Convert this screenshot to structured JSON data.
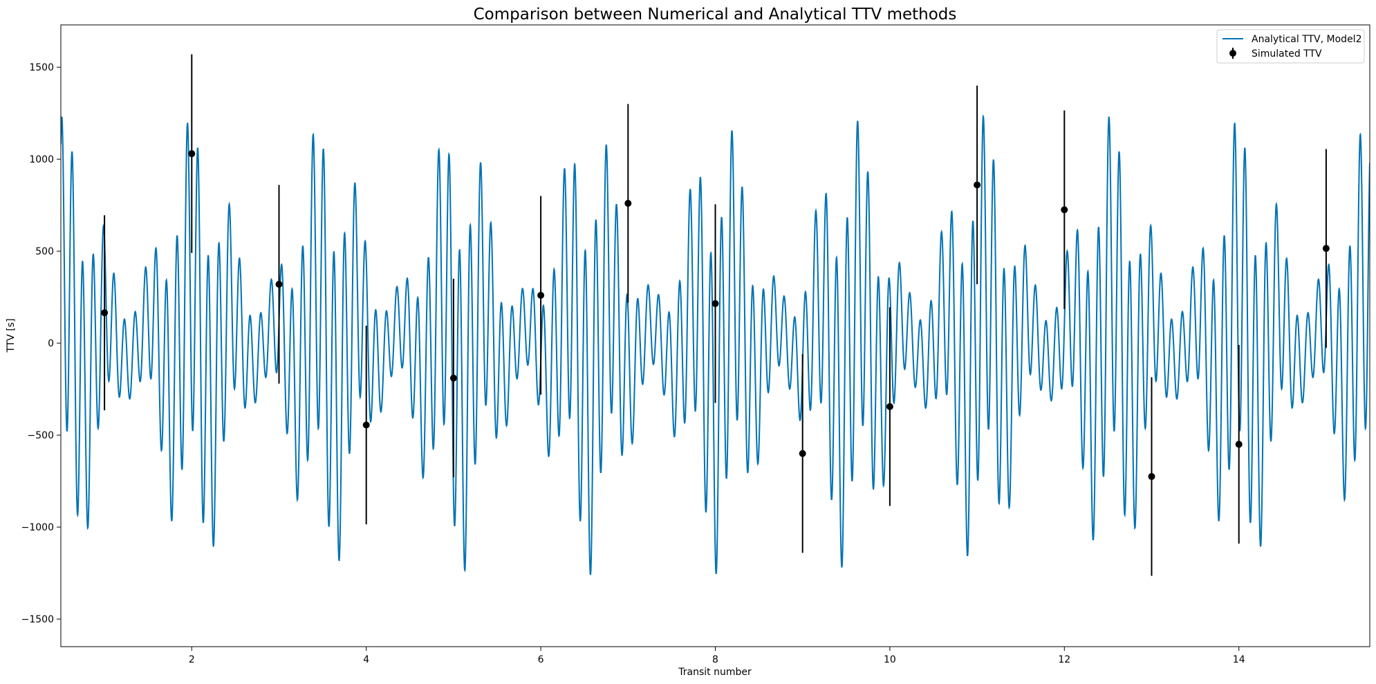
{
  "chart_data": {
    "type": "line",
    "title": "Comparison between Numerical and Analytical TTV methods",
    "xlabel": "Transit number",
    "ylabel": "TTV [s]",
    "xlim": [
      0.5,
      15.5
    ],
    "ylim": [
      -1650,
      1730
    ],
    "xticks": [
      2,
      4,
      6,
      8,
      10,
      12,
      14
    ],
    "yticks": [
      -1500,
      -1000,
      -500,
      0,
      500,
      1000,
      1500
    ],
    "grid": false,
    "legend_position": "top-right",
    "colors": {
      "analytical": "#0072b5",
      "simulated": "#000000"
    },
    "series": [
      {
        "name": "Analytical TTV, Model2",
        "kind": "line",
        "model": {
          "description": "dense oscillation with slow amplitude modulation",
          "x_start": 0.5,
          "x_end": 15.5,
          "fast_period": 0.12,
          "mid_period": 0.48,
          "envelope_period": 1.5,
          "peak_amplitude": 1280
        }
      },
      {
        "name": "Simulated TTV",
        "kind": "errorbar",
        "points": [
          {
            "x": 1,
            "y": 165,
            "err": 530
          },
          {
            "x": 2,
            "y": 1030,
            "err": 540
          },
          {
            "x": 3,
            "y": 320,
            "err": 540
          },
          {
            "x": 4,
            "y": -445,
            "err": 540
          },
          {
            "x": 5,
            "y": -190,
            "err": 540
          },
          {
            "x": 6,
            "y": 260,
            "err": 540
          },
          {
            "x": 7,
            "y": 760,
            "err": 540
          },
          {
            "x": 8,
            "y": 215,
            "err": 540
          },
          {
            "x": 9,
            "y": -600,
            "err": 540
          },
          {
            "x": 10,
            "y": -345,
            "err": 540
          },
          {
            "x": 11,
            "y": 860,
            "err": 540
          },
          {
            "x": 12,
            "y": 725,
            "err": 540
          },
          {
            "x": 13,
            "y": -725,
            "err": 540
          },
          {
            "x": 14,
            "y": -550,
            "err": 540
          },
          {
            "x": 15,
            "y": 515,
            "err": 540
          }
        ]
      }
    ]
  }
}
